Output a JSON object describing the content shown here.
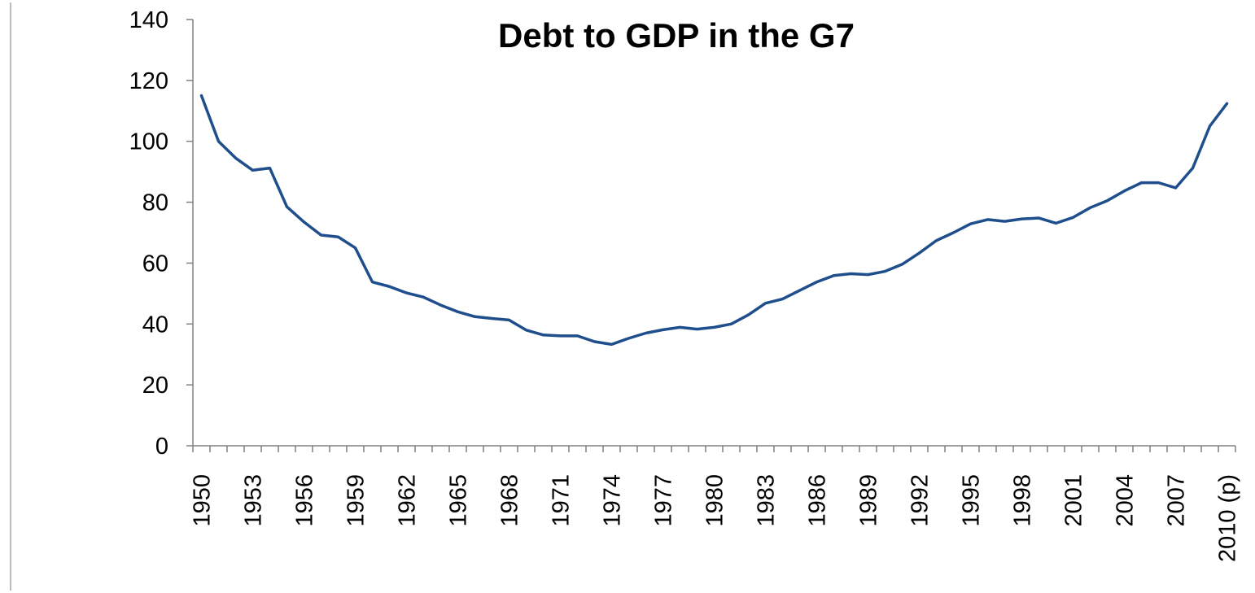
{
  "chart_data": {
    "type": "line",
    "title": "Debt to GDP in the G7",
    "xlabel": "",
    "ylabel": "",
    "ylim": [
      0,
      140
    ],
    "yticks": [
      0,
      20,
      40,
      60,
      80,
      100,
      120,
      140
    ],
    "grid": false,
    "legend": "none",
    "x": [
      "1950",
      "1951",
      "1952",
      "1953",
      "1954",
      "1955",
      "1956",
      "1957",
      "1958",
      "1959",
      "1960",
      "1961",
      "1962",
      "1963",
      "1964",
      "1965",
      "1966",
      "1967",
      "1968",
      "1969",
      "1970",
      "1971",
      "1972",
      "1973",
      "1974",
      "1975",
      "1976",
      "1977",
      "1978",
      "1979",
      "1980",
      "1981",
      "1982",
      "1983",
      "1984",
      "1985",
      "1986",
      "1987",
      "1988",
      "1989",
      "1990",
      "1991",
      "1992",
      "1993",
      "1994",
      "1995",
      "1996",
      "1997",
      "1998",
      "1999",
      "2000",
      "2001",
      "2002",
      "2003",
      "2004",
      "2005",
      "2006",
      "2007",
      "2008",
      "2009",
      "2010 (p)"
    ],
    "xtick_labels": [
      "1950",
      "1953",
      "1956",
      "1959",
      "1962",
      "1965",
      "1968",
      "1971",
      "1974",
      "1977",
      "1980",
      "1983",
      "1986",
      "1989",
      "1992",
      "1995",
      "1998",
      "2001",
      "2004",
      "2007",
      "2010 (p)"
    ],
    "series": [
      {
        "color": "#1f4e8c",
        "values": [
          115,
          100,
          94.5,
          90.5,
          91.2,
          78.5,
          73.5,
          69.2,
          68.6,
          65,
          53.8,
          52.3,
          50.2,
          48.8,
          46.2,
          44,
          42.4,
          41.8,
          41.3,
          38,
          36.4,
          36.1,
          36.1,
          34.2,
          33.3,
          35.3,
          37,
          38.1,
          38.9,
          38.3,
          38.9,
          40,
          43,
          46.8,
          48.2,
          51,
          53.8,
          55.9,
          56.5,
          56.2,
          57.3,
          59.6,
          63.3,
          67.4,
          70,
          72.9,
          74.3,
          73.7,
          74.5,
          74.8,
          73.1,
          75,
          78.2,
          80.5,
          83.7,
          86.4,
          86.4,
          84.7,
          91.2,
          105,
          112.4
        ]
      }
    ]
  },
  "colors": {
    "series": "#1f4e8c",
    "axis": "#808080"
  }
}
